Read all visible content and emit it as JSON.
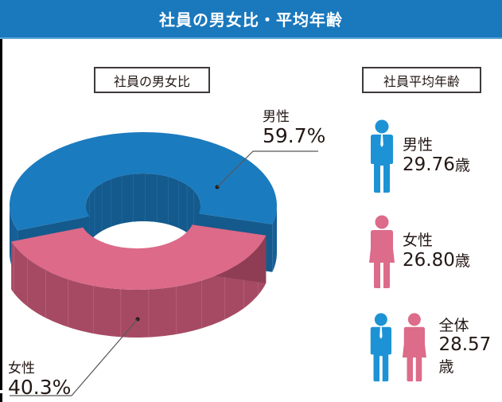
{
  "header": {
    "title": "社員の男女比・平均年齢"
  },
  "sections": {
    "ratio_title": "社員の男女比",
    "age_title": "社員平均年齢"
  },
  "labels": {
    "male": {
      "name": "男性",
      "pct": "59.7%"
    },
    "female": {
      "name": "女性",
      "pct": "40.3%"
    }
  },
  "ages": {
    "male": {
      "name": "男性",
      "value": "29.76",
      "unit": "歳"
    },
    "female": {
      "name": "女性",
      "value": "26.80",
      "unit": "歳"
    },
    "all": {
      "name": "全体",
      "value": "28.57",
      "unit": "歳"
    }
  },
  "colors": {
    "header": "#1a78bd",
    "male_top": "#1b7bbf",
    "male_side": "#165f97",
    "male_inner": "#145a8c",
    "female_top": "#dc6a88",
    "female_side": "#a64a64",
    "female_inner": "#8e3d55",
    "male_icon": "#1d93d5",
    "female_icon": "#dd6b8a"
  },
  "chart_data": [
    {
      "type": "pie",
      "title": "社員の男女比",
      "categories": [
        "男性",
        "女性"
      ],
      "values": [
        59.7,
        40.3
      ],
      "unit": "%",
      "style": "3d-donut, female slice exploded"
    },
    {
      "type": "table",
      "title": "社員平均年齢",
      "categories": [
        "男性",
        "女性",
        "全体"
      ],
      "values": [
        29.76,
        26.8,
        28.57
      ],
      "unit": "歳"
    }
  ]
}
